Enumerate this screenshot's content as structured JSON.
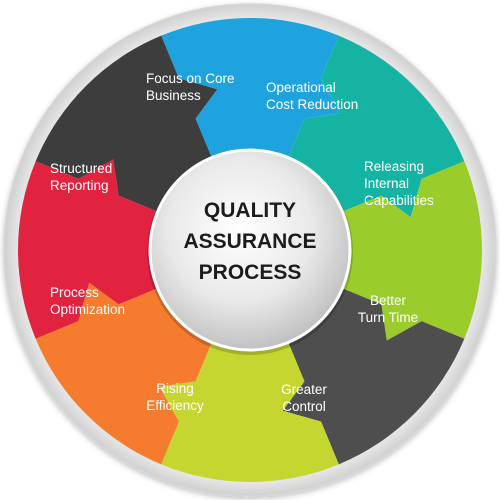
{
  "hub": {
    "title": "QUALITY\nASSURANCE\nPROCESS"
  },
  "segments": [
    {
      "id": "focus",
      "label": "Focus on Core\nBusiness",
      "color": "#1fa3df"
    },
    {
      "id": "operational",
      "label": "Operational\nCost Reduction",
      "color": "#15b3a2"
    },
    {
      "id": "releasing",
      "label": "Releasing\nInternal\nCapabilities",
      "color": "#9acd2b"
    },
    {
      "id": "better",
      "label": "Better\nTurn Time",
      "color": "#4e4e4e"
    },
    {
      "id": "greater",
      "label": "Greater\nControl",
      "color": "#c6d631"
    },
    {
      "id": "rising",
      "label": "Rising\nEfficiency",
      "color": "#f57c2f"
    },
    {
      "id": "process",
      "label": "Process\nOptimization",
      "color": "#e2233f"
    },
    {
      "id": "structured",
      "label": "Structured\nReporting",
      "color": "#3d3d3d"
    }
  ]
}
